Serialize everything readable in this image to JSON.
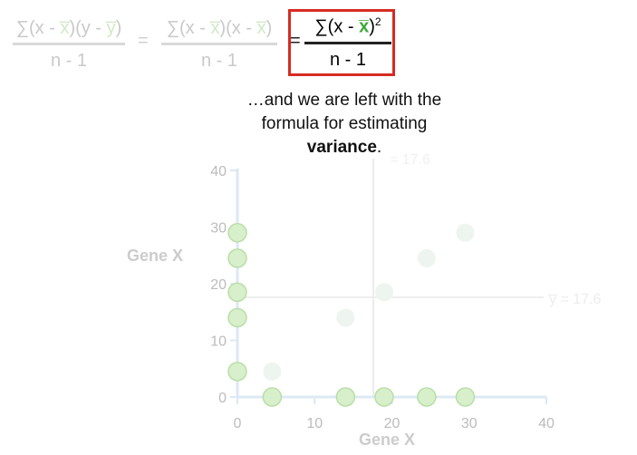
{
  "formula": {
    "term1": {
      "numerator_prefix": "∑(x - ",
      "x_bar": "x̅",
      "numerator_mid": ")(y - ",
      "y_bar": "y̅",
      "numerator_suffix": ")",
      "denominator": "n - 1"
    },
    "equals1": "=",
    "term2": {
      "numerator_prefix": "∑(x - ",
      "x_bar": "x̅",
      "numerator_mid": ")(x - ",
      "x_bar2": "x̅",
      "numerator_suffix": ")",
      "denominator": "n - 1"
    },
    "equals2": "=",
    "highlight": {
      "numerator_prefix": "∑(x - ",
      "x_bar": "x̅",
      "numerator_suffix": ")",
      "exponent": "2",
      "denominator": "n - 1",
      "border_color": "#d62b22"
    }
  },
  "caption": {
    "line1": "…and we are left with the",
    "line2": "formula for estimating",
    "line3_bold": "variance",
    "line3_rest": "."
  },
  "axes": {
    "ylabel": "Gene X",
    "xlabel": "Gene X",
    "x_ticks": [
      "0",
      "10",
      "20",
      "30",
      "40"
    ],
    "y_ticks": [
      "0",
      "10",
      "20",
      "30",
      "40"
    ]
  },
  "reference_lines": {
    "vertical_label": "= 17.6",
    "horizontal_label": "y̅ = 17.6"
  },
  "chart_data": {
    "type": "scatter",
    "xlim": [
      0,
      40
    ],
    "ylim": [
      0,
      40
    ],
    "grid": false,
    "mean_x": 17.6,
    "mean_y": 17.6,
    "x_axis_points": [
      4.5,
      14,
      19,
      24.5,
      29.5
    ],
    "y_axis_points": [
      4.5,
      14,
      18.5,
      24.5,
      29
    ],
    "faded_scatter": [
      {
        "x": 4.5,
        "y": 4.5
      },
      {
        "x": 14,
        "y": 14
      },
      {
        "x": 19,
        "y": 18.5
      },
      {
        "x": 24.5,
        "y": 24.5
      },
      {
        "x": 29.5,
        "y": 29
      }
    ],
    "point_color": "#d7efcb",
    "point_stroke": "#b9dfa6",
    "axis_color": "#dce8f3"
  }
}
